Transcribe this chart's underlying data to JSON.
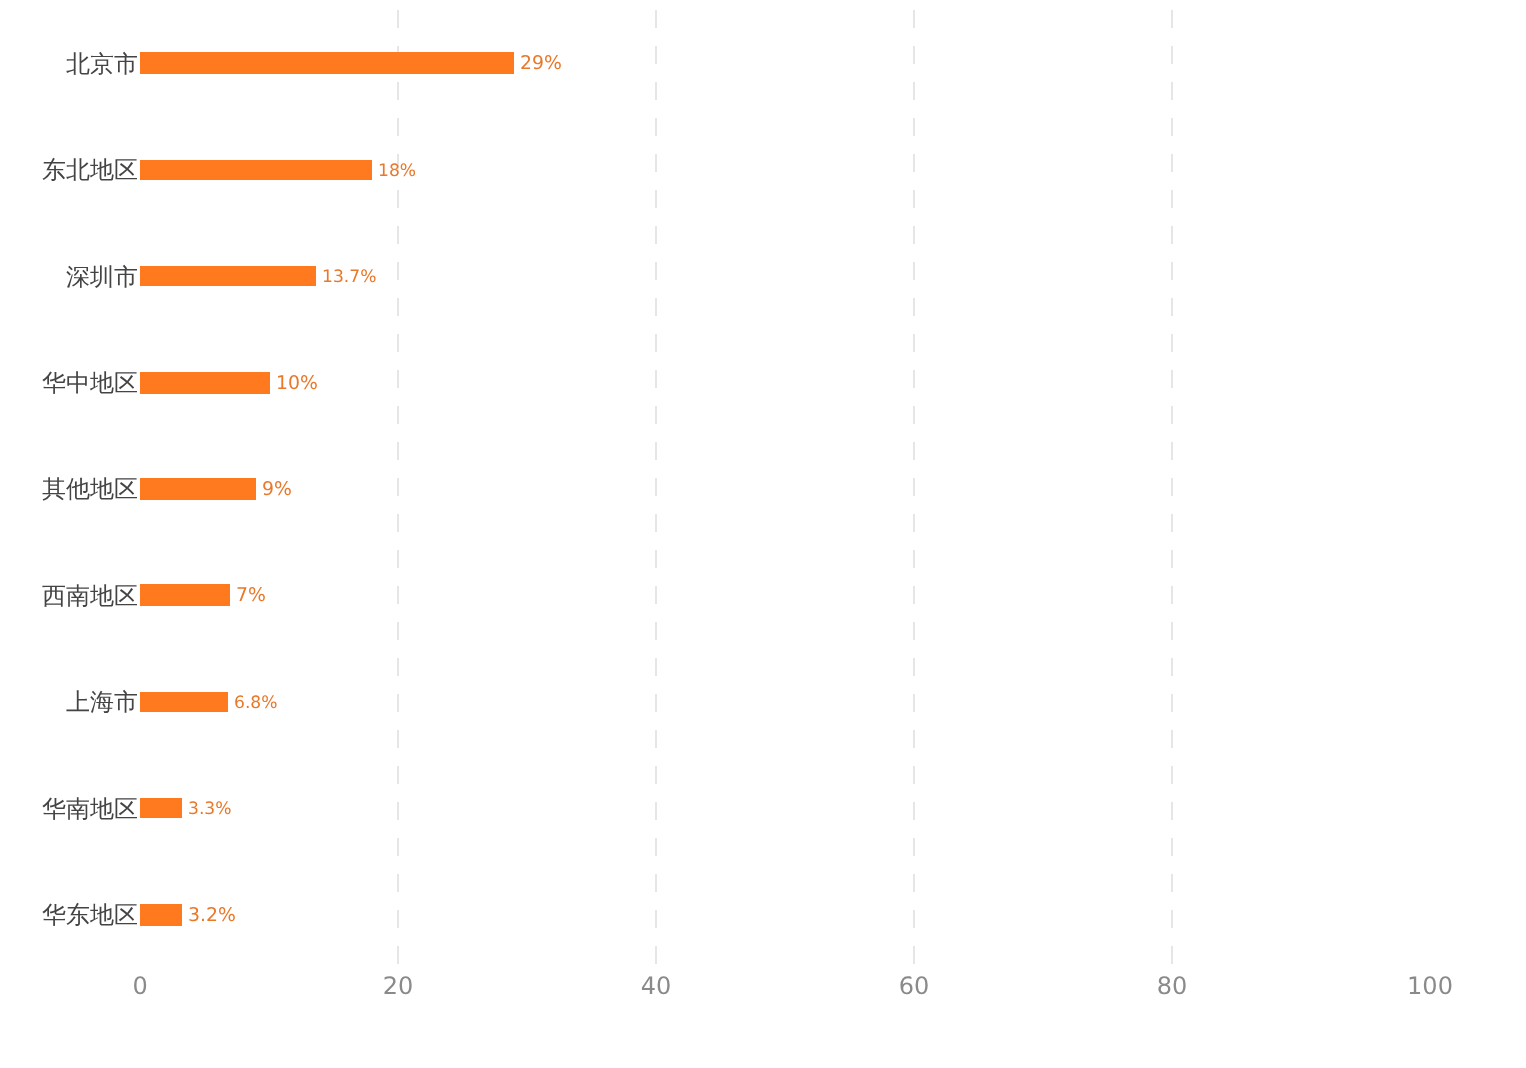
{
  "chart_data": {
    "type": "bar",
    "orientation": "horizontal",
    "categories": [
      "北京市",
      "东北地区",
      "深圳市",
      "华中地区",
      "其他地区",
      "西南地区",
      "上海市",
      "华南地区",
      "华东地区"
    ],
    "values": [
      29,
      18,
      13.7,
      10,
      9,
      7,
      6.8,
      3.3,
      3.2
    ],
    "value_labels": [
      "29%",
      "18%",
      "13.7%",
      "10%",
      "9%",
      "7%",
      "6.8%",
      "3.3%",
      "3.2%"
    ],
    "color": "#ff7a1e",
    "xlim": [
      0,
      100
    ],
    "xticks": [
      0,
      20,
      40,
      60,
      80,
      100
    ],
    "grid": "x",
    "legend": false
  }
}
